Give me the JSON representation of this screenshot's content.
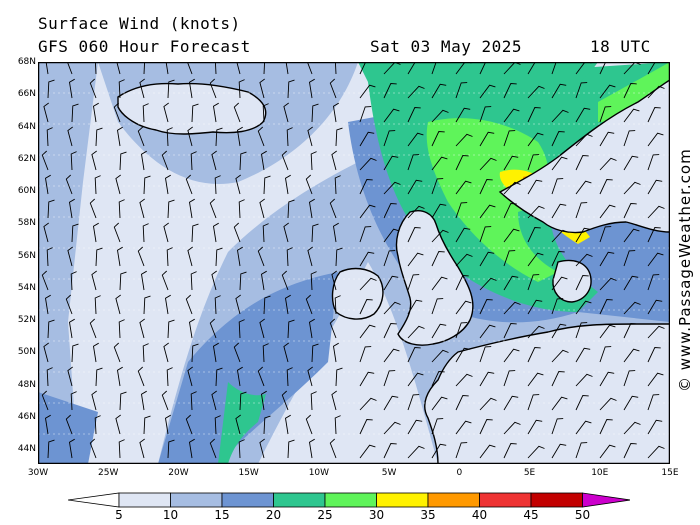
{
  "header": {
    "title": "Surface Wind (knots)",
    "model_line": "GFS 060 Hour Forecast",
    "date": "Sat 03 May 2025",
    "time": "18 UTC"
  },
  "credit": "© www.PassageWeather.com",
  "map": {
    "lat_labels": [
      "68N",
      "66N",
      "64N",
      "62N",
      "60N",
      "58N",
      "56N",
      "54N",
      "52N",
      "50N",
      "48N",
      "46N",
      "44N"
    ],
    "lon_labels": [
      "30W",
      "25W",
      "20W",
      "15W",
      "10W",
      "5W",
      "0",
      "5E",
      "10E",
      "15E"
    ],
    "colors": {
      "speed_0_5": "#ffffff",
      "speed_5_10": "#dfe6f4",
      "speed_10_15": "#a6bde2",
      "speed_15_20": "#6d94d2",
      "speed_20_25": "#2ec68f",
      "speed_25_30": "#5ff45a",
      "speed_30_35": "#fff200",
      "speed_35_40": "#ff9900",
      "land_outline": "#000000"
    }
  },
  "scale": {
    "labels": [
      "5",
      "10",
      "15",
      "20",
      "25",
      "30",
      "35",
      "40",
      "45",
      "50"
    ],
    "colors": [
      "#ffffff",
      "#dfe6f4",
      "#a6bde2",
      "#6d94d2",
      "#2ec68f",
      "#5ff45a",
      "#fff200",
      "#ff9900",
      "#ee3333",
      "#c20000",
      "#cc00cc"
    ]
  }
}
